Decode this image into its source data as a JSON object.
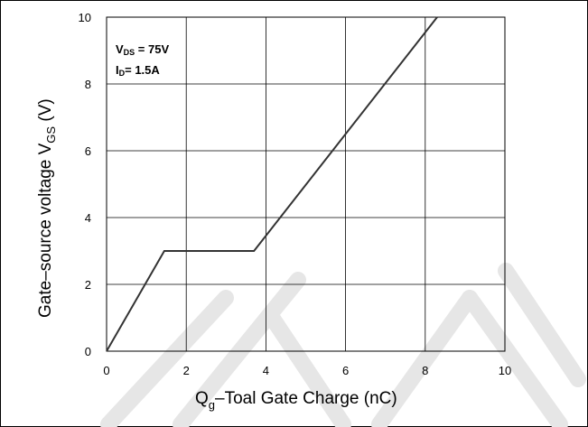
{
  "chart_data": {
    "type": "line",
    "xlabel_main": "Q",
    "xlabel_sub": "g",
    "xlabel_rest": "–Toal Gate Charge  (nC)",
    "ylabel_main": "Gate–source voltage V",
    "ylabel_sub": "GS",
    "ylabel_unit": " (V)",
    "xlim": [
      0,
      10
    ],
    "ylim": [
      0,
      10
    ],
    "xticks": [
      "0",
      "2",
      "4",
      "6",
      "8",
      "10"
    ],
    "yticks": [
      "0",
      "2",
      "4",
      "6",
      "8",
      "10"
    ],
    "grid": true,
    "annotation": {
      "line1_prefix": "V",
      "line1_sub": "DS",
      "line1_rest": " = 75V",
      "line2_prefix": "I",
      "line2_sub": "D",
      "line2_rest": "= 1.5A"
    },
    "series": [
      {
        "x": [
          0,
          1.45,
          3.7,
          8.3
        ],
        "y": [
          0,
          3.0,
          3.0,
          10.0
        ],
        "color": "#333333"
      }
    ]
  }
}
